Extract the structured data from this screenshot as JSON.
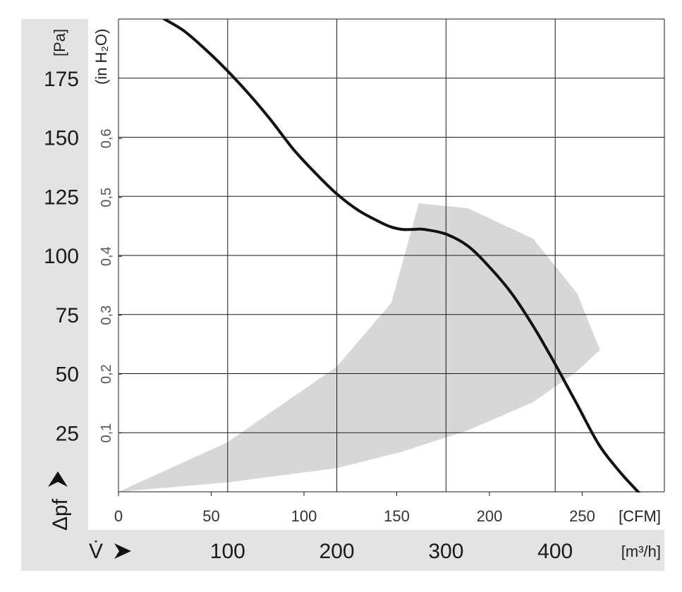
{
  "chart_data": {
    "type": "line",
    "title": "",
    "colors": {
      "curve": "#111111",
      "operating_range": "#d7d7d7",
      "grid": "#1a1a1a",
      "side_band": "#e3e3e3"
    },
    "y_axis": {
      "symbol": "Δpf",
      "unit": "[Pa]",
      "range": [
        0,
        200
      ],
      "ticks": [
        "25",
        "50",
        "75",
        "100",
        "125",
        "150",
        "175"
      ],
      "tick_values": [
        25,
        50,
        75,
        100,
        125,
        150,
        175
      ]
    },
    "y_axis_secondary": {
      "unit": "(in H₂O)",
      "ticks": [
        "0,1",
        "0,2",
        "0,3",
        "0,4",
        "0,5",
        "0,6"
      ],
      "tick_values": [
        0.1,
        0.2,
        0.3,
        0.4,
        0.5,
        0.6
      ]
    },
    "x_axis": {
      "symbol": "V̇",
      "unit": "[m³/h]",
      "range": [
        0,
        500
      ],
      "ticks": [
        "100",
        "200",
        "300",
        "400"
      ],
      "tick_values": [
        100,
        200,
        300,
        400
      ]
    },
    "x_axis_secondary": {
      "unit": "[CFM]",
      "ticks": [
        "0",
        "50",
        "100",
        "150",
        "200",
        "250"
      ],
      "tick_values": [
        0,
        50,
        100,
        150,
        200,
        250
      ]
    },
    "grid": true,
    "series": [
      {
        "x": [
          42,
          60,
          80,
          100,
          120,
          140,
          160,
          180,
          200,
          220,
          240,
          250,
          260,
          270,
          280,
          300,
          320,
          340,
          360,
          380,
          400,
          420,
          440,
          460,
          480,
          487
        ],
        "y": [
          200,
          195,
          187,
          178,
          168,
          157,
          145,
          135,
          126,
          119,
          114,
          112,
          111,
          111,
          111,
          109,
          104,
          95,
          84,
          70,
          54,
          37,
          20,
          8,
          -2,
          -6
        ]
      }
    ],
    "operating_range": {
      "upper_boundary": [
        [
          0,
          0
        ],
        [
          100,
          21
        ],
        [
          200,
          53
        ],
        [
          250,
          80
        ],
        [
          275,
          122
        ]
      ],
      "top_boundary": [
        [
          275,
          122
        ],
        [
          320,
          120
        ],
        [
          380,
          107
        ],
        [
          420,
          84
        ],
        [
          441,
          60
        ]
      ],
      "lower_boundary": [
        [
          441,
          60
        ],
        [
          420,
          51
        ],
        [
          380,
          38
        ],
        [
          320,
          26
        ],
        [
          260,
          17
        ],
        [
          200,
          10
        ],
        [
          100,
          4
        ],
        [
          0,
          0
        ]
      ]
    }
  }
}
